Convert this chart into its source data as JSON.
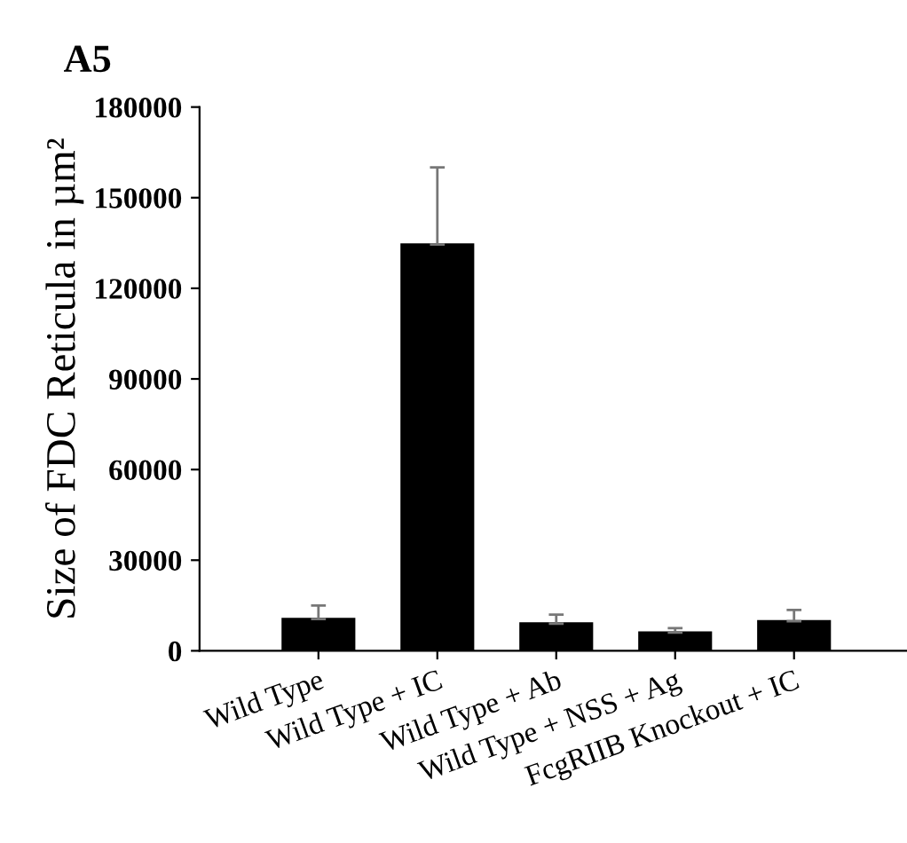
{
  "chart_data": {
    "type": "bar",
    "title": "A5",
    "ylabel": "Size of FDC Reticula in µm²",
    "categories": [
      "Wild Type",
      "Wild Type + IC",
      "Wild Type + Ab",
      "Wild Type + NSS + Ag",
      "FcgRIIB Knockout + IC"
    ],
    "values": [
      10500,
      134500,
      9000,
      6000,
      9800
    ],
    "errors": [
      [
        10500,
        15000
      ],
      [
        134500,
        160000
      ],
      [
        9000,
        12000
      ],
      [
        6000,
        7500
      ],
      [
        9800,
        13500
      ]
    ],
    "color": "#000000",
    "ylim": [
      0,
      180000
    ],
    "yticks": [
      0,
      30000,
      60000,
      90000,
      120000,
      150000,
      180000
    ],
    "grid": false,
    "legend": false
  }
}
